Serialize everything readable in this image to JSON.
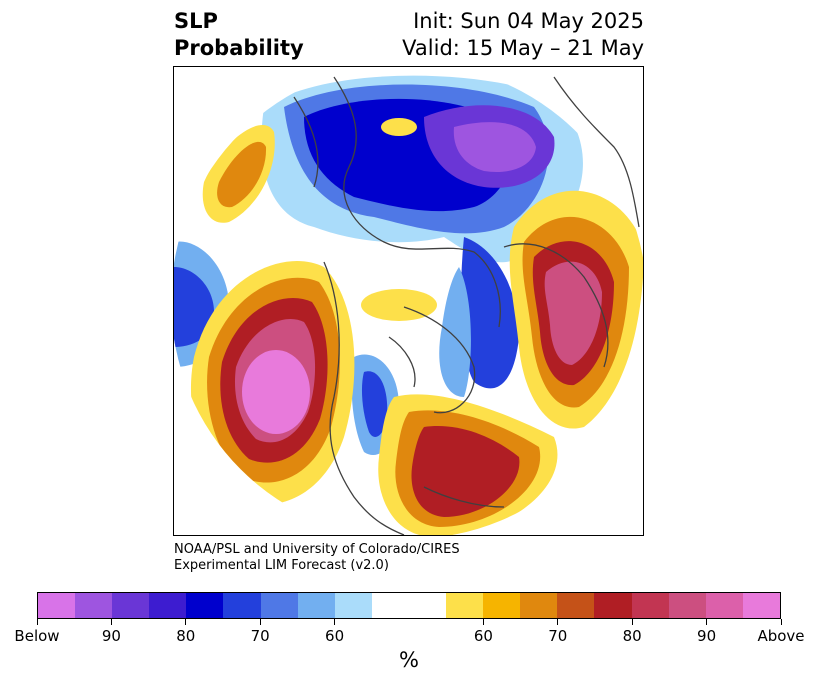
{
  "title": {
    "line1": "SLP",
    "line2": "Probability"
  },
  "init": "Init: Sun 04 May 2025",
  "valid": "Valid: 15 May – 21 May",
  "credit": {
    "line1": "NOAA/PSL and University of Colorado/CIRES",
    "line2": "Experimental LIM Forecast (v2.0)"
  },
  "colorbar": {
    "unit": "%",
    "colors": [
      "#d873e8",
      "#9e55e0",
      "#6a36d6",
      "#3d1cd0",
      "#0000cd",
      "#2340dc",
      "#4f78e6",
      "#72aff0",
      "#aadcfa",
      "#ffffff",
      "#ffffff",
      "#fde04a",
      "#f6b400",
      "#e0880e",
      "#c55218",
      "#b01e24",
      "#c23552",
      "#cc4f80",
      "#dc60aa",
      "#e87adb"
    ],
    "ticks": [
      "Below",
      "90",
      "80",
      "70",
      "60",
      "60",
      "70",
      "80",
      "90",
      "Above"
    ]
  },
  "map_colors": {
    "deep_blue": "#0000cd",
    "mid_blue": "#2340dc",
    "light_blue": "#72aff0",
    "pale_blue": "#aadcfa",
    "purple": "#6a36d6",
    "yellow": "#fde04a",
    "orange": "#e0880e",
    "red": "#b01e24",
    "pink": "#dc60aa",
    "magenta": "#e87adb",
    "coast": "#404040"
  }
}
